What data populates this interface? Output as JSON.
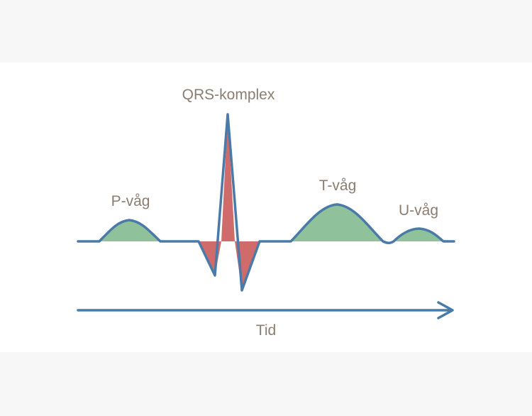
{
  "labels": {
    "p_wave": "P-våg",
    "qrs_complex": "QRS-komplex",
    "t_wave": "T-våg",
    "u_wave": "U-våg",
    "time_axis": "Tid"
  },
  "colors": {
    "waveform": "#4a7aa8",
    "positive_fill": "#8fc19a",
    "qrs_fill": "#cf6b6b",
    "label": "#8b7d72",
    "background": "#ffffff",
    "outer_band": "#f7f7f7"
  }
}
